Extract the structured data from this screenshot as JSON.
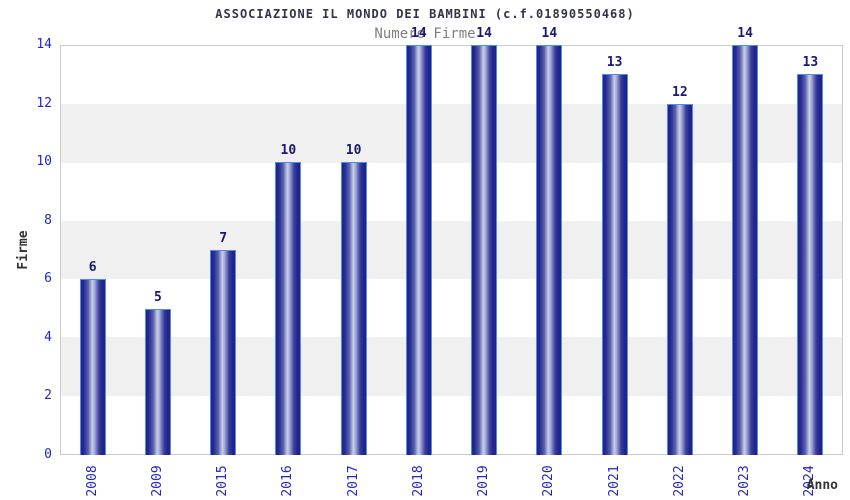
{
  "title": "ASSOCIAZIONE IL MONDO DEI BAMBINI (c.f.01890550468)",
  "subtitle": "Numero Firme",
  "chart_data": {
    "type": "bar",
    "title": "ASSOCIAZIONE IL MONDO DEI BAMBINI (c.f.01890550468)",
    "subtitle": "Numero Firme",
    "categories": [
      "2008",
      "2009",
      "2015",
      "2016",
      "2017",
      "2018",
      "2019",
      "2020",
      "2021",
      "2022",
      "2023",
      "2024"
    ],
    "values": [
      6,
      5,
      7,
      10,
      10,
      14,
      14,
      14,
      13,
      12,
      14,
      13
    ],
    "xlabel": "Anno",
    "ylabel": "Firme",
    "ylim": [
      0,
      14
    ],
    "yticks": [
      0,
      2,
      4,
      6,
      8,
      10,
      12,
      14
    ],
    "grid": "alternating horizontal bands every 2 units",
    "legend_position": "none",
    "value_labels": "above bars"
  },
  "colors": {
    "bar_dark": "#23238b",
    "bar_highlight": "#c8cee6",
    "bar_outline": "#4a90e8",
    "tick_label_blue": "#2424cc",
    "value_label_navy": "#191970",
    "title_color": "#33334a",
    "subtitle_gray": "#7f7f7f",
    "band_gray": "#f0f0f0",
    "band_white": "#ffffff",
    "plot_border": "#cccccc",
    "axis_label_color": "#333333"
  }
}
